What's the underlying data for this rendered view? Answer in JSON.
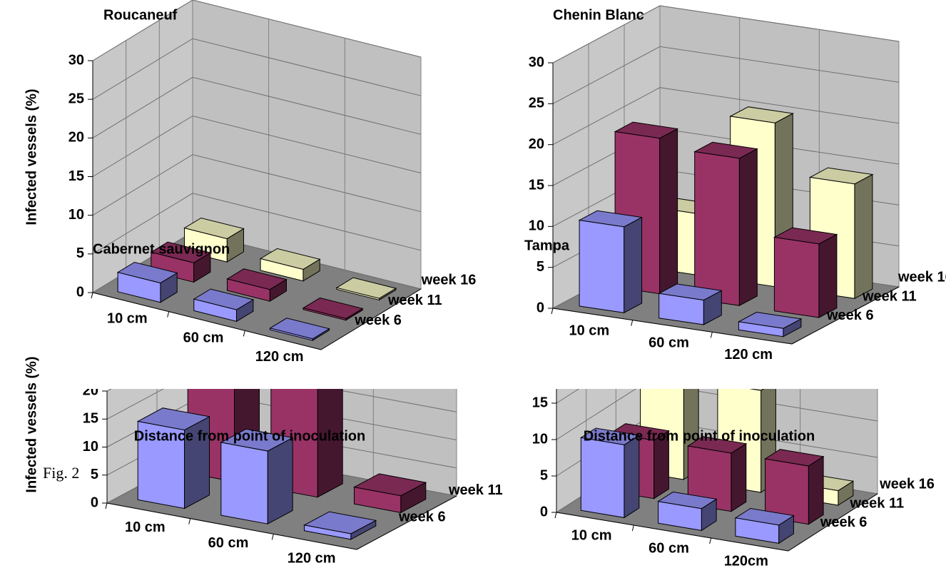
{
  "caption": "Fig. 2",
  "chart_data": [
    {
      "type": "bar3d",
      "title": "Roucaneuf",
      "y_label": "Infected vessels (%)",
      "x_label": "Distance from point of inoculation",
      "categories": [
        "10 cm",
        "60 cm",
        "120 cm"
      ],
      "series": [
        {
          "name": "week 6",
          "color": "#9999ff",
          "values": [
            2.5,
            1.5,
            0.2
          ]
        },
        {
          "name": "week 11",
          "color": "#993366",
          "values": [
            2.5,
            1.5,
            0.2
          ]
        },
        {
          "name": "week 16",
          "color": "#ffffcc",
          "values": [
            3,
            1.5,
            0.2
          ]
        }
      ],
      "ylim": [
        0,
        30
      ],
      "yticks": [
        0,
        5,
        10,
        15,
        20,
        25,
        30
      ],
      "grid": true
    },
    {
      "type": "bar3d",
      "title": "Chenin Blanc",
      "x_label": "Distance from point of inoculation",
      "categories": [
        "10 cm",
        "60 cm",
        "120 cm"
      ],
      "series": [
        {
          "name": "week 6",
          "color": "#9999ff",
          "values": [
            10.5,
            3,
            1
          ]
        },
        {
          "name": "week 11",
          "color": "#993366",
          "values": [
            19,
            18,
            9
          ]
        },
        {
          "name": "week 16",
          "color": "#ffffcc",
          "values": [
            7.5,
            20,
            14
          ]
        }
      ],
      "ylim": [
        0,
        30
      ],
      "yticks": [
        0,
        5,
        10,
        15,
        20,
        25,
        30
      ],
      "grid": true
    },
    {
      "type": "bar3d",
      "title": "Cabernet sauvignon",
      "y_label": "Infected vessels (%)",
      "categories": [
        "10 cm",
        "60 cm",
        "120 cm"
      ],
      "series": [
        {
          "name": "week 6",
          "color": "#9999ff",
          "values": [
            14,
            13,
            1
          ]
        },
        {
          "name": "week 11",
          "color": "#993366",
          "values": [
            20,
            20,
            3
          ]
        }
      ],
      "ylim": [
        0,
        20
      ],
      "yticks": [
        0,
        5,
        10,
        15,
        20
      ],
      "grid": true
    },
    {
      "type": "bar3d",
      "title": "Tampa",
      "categories": [
        "10 cm",
        "60 cm",
        "120cm"
      ],
      "series": [
        {
          "name": "week 6",
          "color": "#9999ff",
          "values": [
            10,
            3,
            2.5
          ]
        },
        {
          "name": "week 11",
          "color": "#993366",
          "values": [
            8,
            8,
            8
          ]
        },
        {
          "name": "week 16",
          "color": "#ffffcc",
          "values": [
            18,
            14,
            2
          ]
        }
      ],
      "ylim": [
        0,
        20
      ],
      "yticks": [
        0,
        5,
        10,
        15
      ],
      "grid": true
    }
  ]
}
